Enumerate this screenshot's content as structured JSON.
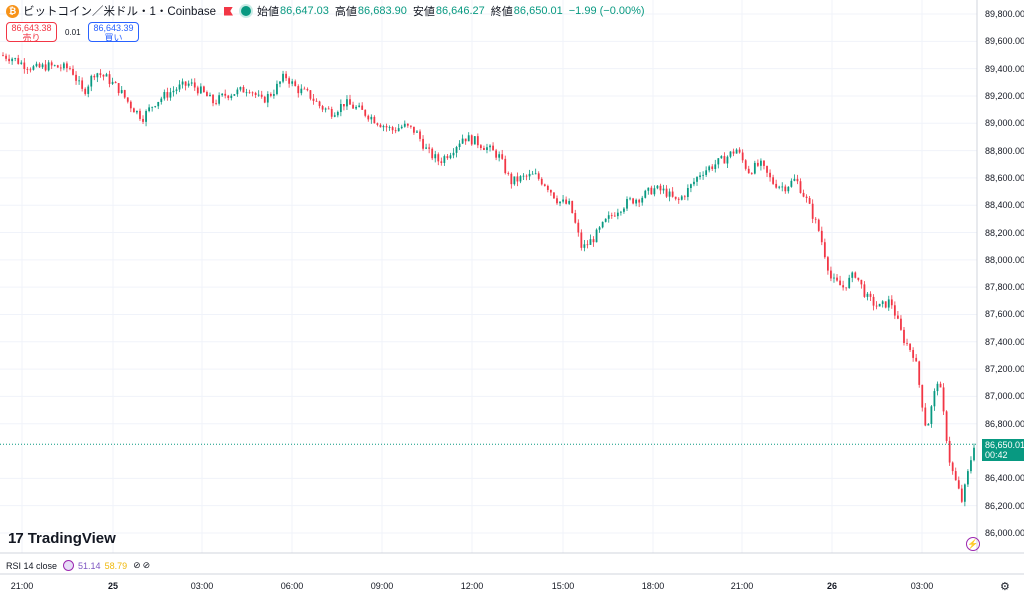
{
  "legend": {
    "symbol": "ビットコイン／米ドル・1・Coinbase",
    "open_label": "始値",
    "open": "86,647.03",
    "high_label": "高値",
    "high": "86,683.90",
    "low_label": "安値",
    "low": "86,646.27",
    "close_label": "終値",
    "close": "86,650.01",
    "change": "−1.99 (−0.00%)"
  },
  "order": {
    "sell_price": "86,643.38",
    "sell_label": "売り",
    "spread": "0.01",
    "buy_price": "86,643.39",
    "buy_label": "買い"
  },
  "last_price": {
    "price": "86,650.01",
    "countdown": "00:42"
  },
  "logo_text": "TradingView",
  "rsi": {
    "label": "RSI 14 close",
    "value": "51.14",
    "ma_value": "58.79"
  },
  "colors": {
    "up": "#089981",
    "down": "#f23645",
    "grid": "#f0f3fa"
  },
  "icons": {
    "coin": "bitcoin-icon",
    "live": "market-open-icon",
    "settings": "gear-icon",
    "bolt": "lightning-icon"
  },
  "chart_data": {
    "type": "line",
    "title": "",
    "xlabel": "",
    "ylabel": "",
    "ylim": [
      85900,
      89950
    ],
    "y_ticks": [
      "89,800.00",
      "89,600.00",
      "89,400.00",
      "89,200.00",
      "89,000.00",
      "88,800.00",
      "88,600.00",
      "88,400.00",
      "88,200.00",
      "88,000.00",
      "87,800.00",
      "87,600.00",
      "87,400.00",
      "87,200.00",
      "87,000.00",
      "86,800.00",
      "86,400.00",
      "86,200.00",
      "86,000.00"
    ],
    "x_ticks": [
      {
        "label": "21:00",
        "bold": false
      },
      {
        "label": "25",
        "bold": true
      },
      {
        "label": "03:00",
        "bold": false
      },
      {
        "label": "06:00",
        "bold": false
      },
      {
        "label": "09:00",
        "bold": false
      },
      {
        "label": "12:00",
        "bold": false
      },
      {
        "label": "15:00",
        "bold": false
      },
      {
        "label": "18:00",
        "bold": false
      },
      {
        "label": "21:00",
        "bold": false
      },
      {
        "label": "26",
        "bold": true
      },
      {
        "label": "03:00",
        "bold": false
      }
    ],
    "series": [
      {
        "values": [
          89500,
          89480,
          89430,
          89400,
          89420,
          89410,
          89400,
          89220,
          89380,
          89330,
          89250,
          89130,
          89040,
          89150,
          89210,
          89260,
          89290,
          89230,
          89150,
          89210,
          89230,
          89260,
          89160,
          89230,
          89350,
          89250,
          89210,
          89120,
          89080,
          89150,
          89110,
          89060,
          89000,
          88950,
          88980,
          88940,
          88790,
          88720,
          88800,
          88900,
          88870,
          88820,
          88760,
          88570,
          88600,
          88620,
          88550,
          88430,
          88400,
          88080,
          88160,
          88280,
          88370,
          88430,
          88460,
          88520,
          88500,
          88420,
          88520,
          88640,
          88690,
          88740,
          88810,
          88650,
          88700,
          88570,
          88530,
          88590,
          88420,
          88200,
          87850,
          87800,
          87900,
          87720,
          87650,
          87700,
          87430,
          87300,
          86750,
          87150,
          86500,
          86230,
          86650
        ]
      }
    ]
  }
}
